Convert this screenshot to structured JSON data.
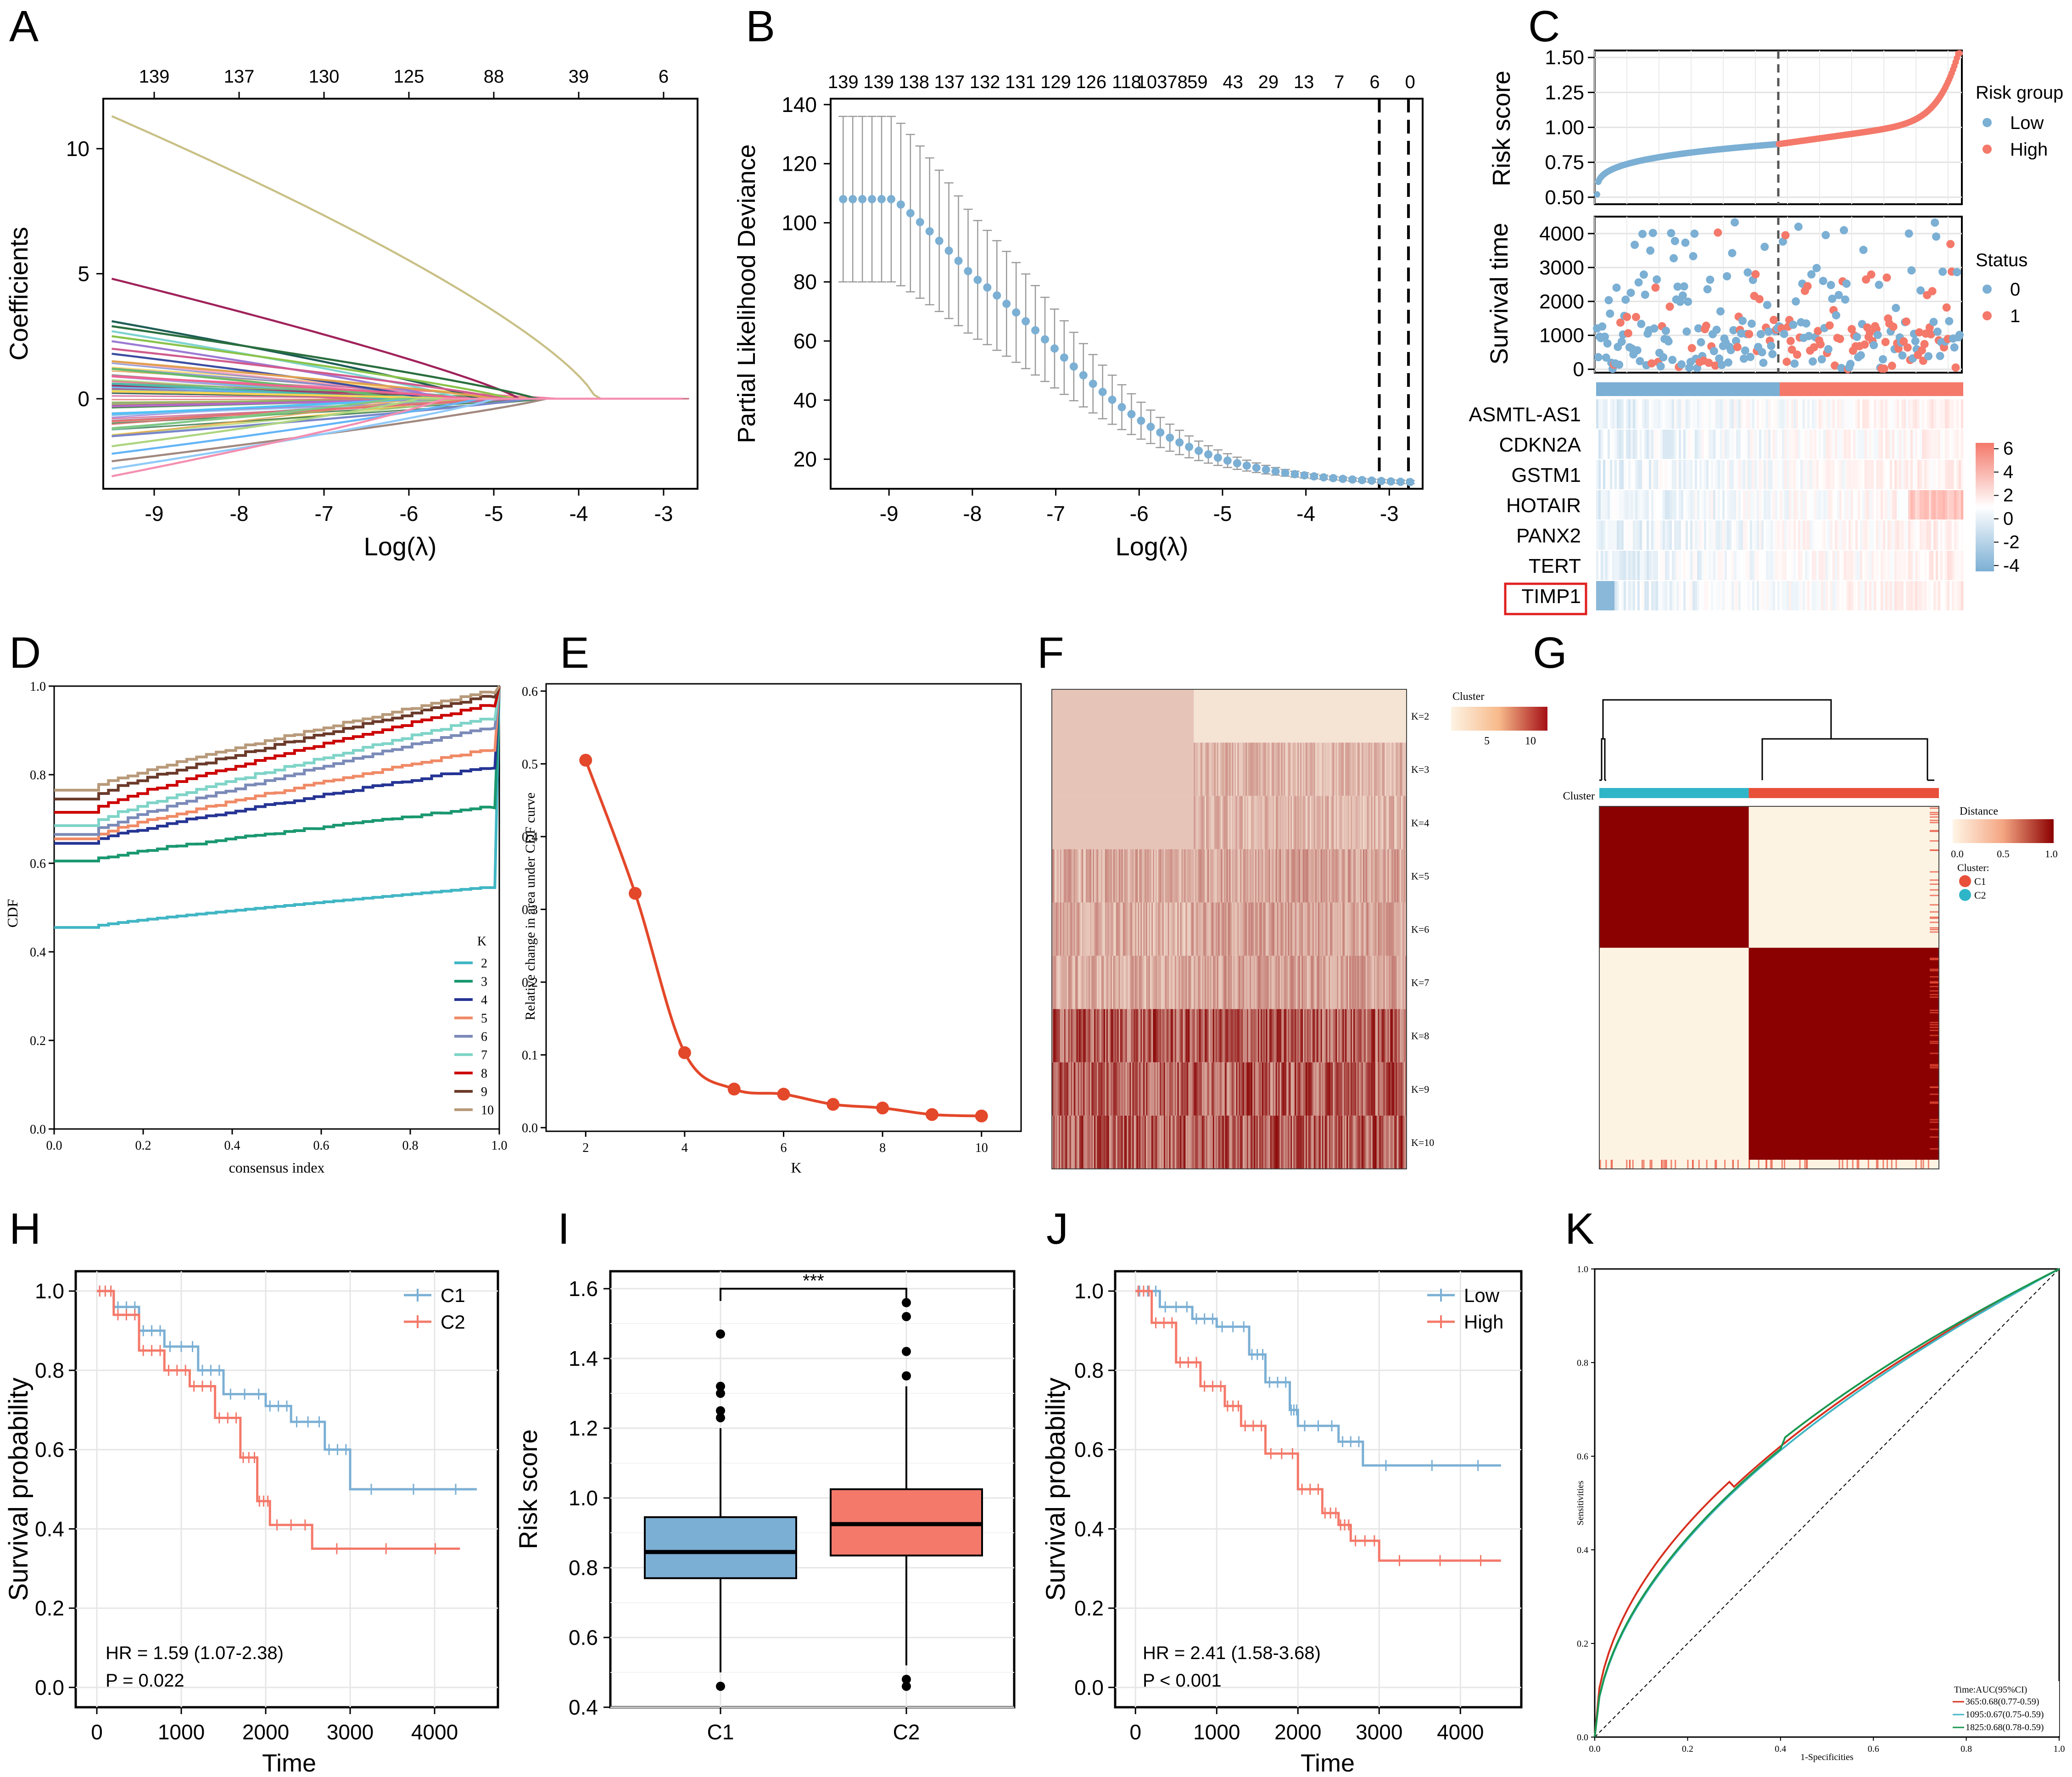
{
  "panel_letters": [
    "A",
    "B",
    "C",
    "D",
    "E",
    "F",
    "G",
    "H",
    "I",
    "J",
    "K"
  ],
  "colors": {
    "blue": "#7BAFD4",
    "red": "#F4796A",
    "c1": "#2FB5C8",
    "c2": "#E8503A",
    "dark_red": "#8B0000",
    "orange_red": "#E3482A",
    "roc_red": "#D7301F",
    "roc_teal": "#41B6C4",
    "roc_green": "#1A9850"
  },
  "chart_data": [
    {
      "panel": "A",
      "type": "line",
      "xlabel": "Log(λ)",
      "ylabel": "Coefficients",
      "x_ticks": [
        "-9",
        "-8",
        "-7",
        "-6",
        "-5",
        "-4",
        "-3"
      ],
      "y_ticks": [
        "0",
        "5",
        "10"
      ],
      "top_ticks": [
        "139",
        "137",
        "130",
        "125",
        "88",
        "39",
        "6"
      ],
      "xlim": [
        -9.6,
        -2.6
      ],
      "ylim": [
        -3.6,
        12
      ],
      "series_start_values": [
        11.3,
        4.8,
        3.1,
        2.9,
        2.7,
        2.5,
        2.3,
        2.0,
        1.8,
        1.5,
        1.2,
        0.9,
        0.6,
        0.3,
        -0.3,
        -0.6,
        -0.9,
        -1.2,
        -1.5,
        -1.9,
        -2.2,
        -2.5,
        -2.8,
        -3.1
      ],
      "series_zero_at": [
        -3.8,
        -4.7,
        -5.2,
        -4.5,
        -5.4,
        -4.8,
        -5.6,
        -4.9,
        -5.8,
        -5.0,
        -6.1,
        -5.3,
        -6.3,
        -5.5,
        -5.7,
        -6.0,
        -5.1,
        -6.2,
        -4.6,
        -5.9,
        -5.2,
        -4.4,
        -5.0,
        -5.6
      ]
    },
    {
      "panel": "B",
      "type": "scatter",
      "xlabel": "Log(λ)",
      "ylabel": "Partial Likelihood Deviance",
      "x_ticks": [
        "-9",
        "-8",
        "-7",
        "-6",
        "-5",
        "-4",
        "-3"
      ],
      "y_ticks": [
        "20",
        "40",
        "60",
        "80",
        "100",
        "120",
        "140"
      ],
      "top_ticks": [
        "139",
        "139",
        "138",
        "137",
        "132",
        "131",
        "129",
        "126",
        "118",
        "10378",
        "59",
        "43",
        "29",
        "13",
        "7",
        "6",
        "0"
      ],
      "xlim": [
        -9.7,
        -2.6
      ],
      "ylim": [
        10,
        142
      ],
      "lambda_min": -3.12,
      "lambda_1se": -2.77,
      "points": {
        "x_start": -9.55,
        "x_end": -2.75,
        "count": 60,
        "y_start": 108,
        "y_end": 11.5,
        "error_start": 28
      }
    },
    {
      "panel": "C-top",
      "type": "scatter",
      "ylabel": "Risk score",
      "y_ticks": [
        "0.50",
        "0.75",
        "1.00",
        "1.25",
        "1.50"
      ],
      "ylim": [
        0.45,
        1.55
      ],
      "legend_title": "Risk group",
      "legend": [
        "Low",
        "High"
      ],
      "n_samples": 280
    },
    {
      "panel": "C-mid",
      "type": "scatter",
      "ylabel": "Survival time",
      "y_ticks": [
        "0",
        "1000",
        "2000",
        "3000",
        "4000"
      ],
      "ylim": [
        -100,
        4500
      ],
      "legend_title": "Status",
      "legend": [
        "0",
        "1"
      ]
    },
    {
      "panel": "C-heat",
      "type": "heatmap",
      "rows": [
        "ASMTL-AS1",
        "CDKN2A",
        "GSTM1",
        "HOTAIR",
        "PANX2",
        "TERT",
        "TIMP1"
      ],
      "highlighted_row": "TIMP1",
      "scale_ticks": [
        "6",
        "4",
        "2",
        "0",
        "-2",
        "-4"
      ],
      "scale_range": [
        -4.5,
        6.5
      ]
    },
    {
      "panel": "D",
      "type": "line",
      "xlabel": "consensus index",
      "ylabel": "CDF",
      "x_ticks": [
        "0.0",
        "0.2",
        "0.4",
        "0.6",
        "0.8",
        "1.0"
      ],
      "y_ticks": [
        "0.0",
        "0.2",
        "0.4",
        "0.6",
        "0.8",
        "1.0"
      ],
      "legend_title": "K",
      "series": [
        {
          "name": "2",
          "color": "#41B6C4",
          "y0": 0.455,
          "y1": 0.545
        },
        {
          "name": "3",
          "color": "#1A9870",
          "y0": 0.605,
          "y1": 0.725
        },
        {
          "name": "4",
          "color": "#253494",
          "y0": 0.645,
          "y1": 0.815
        },
        {
          "name": "5",
          "color": "#F08A66",
          "y0": 0.655,
          "y1": 0.855
        },
        {
          "name": "6",
          "color": "#7B8AB8",
          "y0": 0.665,
          "y1": 0.905
        },
        {
          "name": "7",
          "color": "#7FD4C8",
          "y0": 0.685,
          "y1": 0.925
        },
        {
          "name": "8",
          "color": "#CC0000",
          "y0": 0.715,
          "y1": 0.955
        },
        {
          "name": "9",
          "color": "#6B3A2A",
          "y0": 0.745,
          "y1": 0.975
        },
        {
          "name": "10",
          "color": "#B89A7A",
          "y0": 0.765,
          "y1": 0.985
        }
      ]
    },
    {
      "panel": "E",
      "type": "line",
      "xlabel": "K",
      "ylabel": "Relative change in area under CDF curve",
      "x_ticks": [
        "2",
        "4",
        "6",
        "8",
        "10"
      ],
      "y_ticks": [
        "0.0",
        "0.1",
        "0.2",
        "0.3",
        "0.4",
        "0.5",
        "0.6"
      ],
      "x": [
        2,
        3,
        4,
        5,
        6,
        7,
        8,
        9,
        10
      ],
      "values": [
        0.505,
        0.322,
        0.103,
        0.053,
        0.046,
        0.032,
        0.027,
        0.018,
        0.016
      ],
      "ylim": [
        -0.005,
        0.61
      ]
    },
    {
      "panel": "F",
      "type": "heatmap",
      "rows": [
        "K=2",
        "K=3",
        "K=4",
        "K=5",
        "K=6",
        "K=7",
        "K=8",
        "K=9",
        "K=10"
      ],
      "legend_title": "Cluster",
      "legend_ticks": [
        "5",
        "10"
      ]
    },
    {
      "panel": "G",
      "type": "heatmap",
      "row_label": "Cluster",
      "legend_distance_title": "Distance",
      "distance_ticks": [
        "0.0",
        "0.5",
        "1.0"
      ],
      "legend_cluster_title": "Cluster:",
      "clusters": [
        "C1",
        "C2"
      ],
      "split_fraction": 0.44
    },
    {
      "panel": "H",
      "type": "line",
      "xlabel": "Time",
      "ylabel": "Survival probability",
      "x_ticks": [
        "0",
        "1000",
        "2000",
        "3000",
        "4000"
      ],
      "y_ticks": [
        "0.0",
        "0.2",
        "0.4",
        "0.6",
        "0.8",
        "1.0"
      ],
      "series": [
        {
          "name": "C1",
          "points": [
            [
              0,
              1.0
            ],
            [
              200,
              0.96
            ],
            [
              500,
              0.9
            ],
            [
              800,
              0.86
            ],
            [
              1200,
              0.8
            ],
            [
              1500,
              0.74
            ],
            [
              2000,
              0.71
            ],
            [
              2300,
              0.67
            ],
            [
              2700,
              0.6
            ],
            [
              3000,
              0.5
            ],
            [
              4500,
              0.5
            ]
          ]
        },
        {
          "name": "C2",
          "points": [
            [
              0,
              1.0
            ],
            [
              200,
              0.94
            ],
            [
              500,
              0.85
            ],
            [
              800,
              0.8
            ],
            [
              1100,
              0.76
            ],
            [
              1400,
              0.68
            ],
            [
              1700,
              0.58
            ],
            [
              1900,
              0.47
            ],
            [
              2050,
              0.41
            ],
            [
              2550,
              0.35
            ],
            [
              4300,
              0.35
            ]
          ]
        }
      ],
      "annotation_hr": "HR = 1.59 (1.07-2.38)",
      "annotation_p": "P = 0.022"
    },
    {
      "panel": "I",
      "type": "bar",
      "ylabel": "Risk score",
      "categories": [
        "C1",
        "C2"
      ],
      "y_ticks": [
        "0.4",
        "0.6",
        "0.8",
        "1.0",
        "1.2",
        "1.4",
        "1.6"
      ],
      "ylim": [
        0.4,
        1.65
      ],
      "boxes": [
        {
          "name": "C1",
          "q1": 0.77,
          "median": 0.845,
          "q3": 0.945,
          "whisker_low": 0.5,
          "whisker_high": 1.2,
          "outliers": [
            1.23,
            1.25,
            1.3,
            1.32,
            1.47,
            0.46
          ]
        },
        {
          "name": "C2",
          "q1": 0.835,
          "median": 0.925,
          "q3": 1.025,
          "whisker_low": 0.52,
          "whisker_high": 1.32,
          "outliers": [
            1.35,
            1.42,
            1.52,
            1.56,
            0.48,
            0.46
          ]
        }
      ],
      "significance": "***"
    },
    {
      "panel": "J",
      "type": "line",
      "xlabel": "Time",
      "ylabel": "Survival probability",
      "x_ticks": [
        "0",
        "1000",
        "2000",
        "3000",
        "4000"
      ],
      "y_ticks": [
        "0.0",
        "0.2",
        "0.4",
        "0.6",
        "0.8",
        "1.0"
      ],
      "series": [
        {
          "name": "Low",
          "points": [
            [
              0,
              1.0
            ],
            [
              300,
              0.96
            ],
            [
              700,
              0.93
            ],
            [
              1000,
              0.91
            ],
            [
              1400,
              0.84
            ],
            [
              1600,
              0.77
            ],
            [
              1900,
              0.7
            ],
            [
              2000,
              0.66
            ],
            [
              2500,
              0.62
            ],
            [
              2800,
              0.56
            ],
            [
              4500,
              0.56
            ]
          ]
        },
        {
          "name": "High",
          "points": [
            [
              0,
              1.0
            ],
            [
              200,
              0.92
            ],
            [
              500,
              0.82
            ],
            [
              800,
              0.76
            ],
            [
              1100,
              0.71
            ],
            [
              1300,
              0.66
            ],
            [
              1600,
              0.59
            ],
            [
              2000,
              0.5
            ],
            [
              2300,
              0.44
            ],
            [
              2500,
              0.41
            ],
            [
              2650,
              0.37
            ],
            [
              3000,
              0.32
            ],
            [
              4500,
              0.32
            ]
          ]
        }
      ],
      "annotation_hr": "HR = 2.41 (1.58-3.68)",
      "annotation_p": "P < 0.001"
    },
    {
      "panel": "K",
      "type": "line",
      "xlabel": "1-Specificities",
      "ylabel": "Sensitivities",
      "x_ticks": [
        "0.0",
        "0.2",
        "0.4",
        "0.6",
        "0.8",
        "1.0"
      ],
      "y_ticks": [
        "0.0",
        "0.2",
        "0.4",
        "0.6",
        "0.8",
        "1.0"
      ],
      "legend_title": "Time:AUC(95%CI)",
      "series": [
        {
          "name": "365:0.68(0.77-0.59)",
          "auc": 0.68
        },
        {
          "name": "1095:0.67(0.75-0.59)",
          "auc": 0.67
        },
        {
          "name": "1825:0.68(0.78-0.59)",
          "auc": 0.68
        }
      ]
    }
  ]
}
